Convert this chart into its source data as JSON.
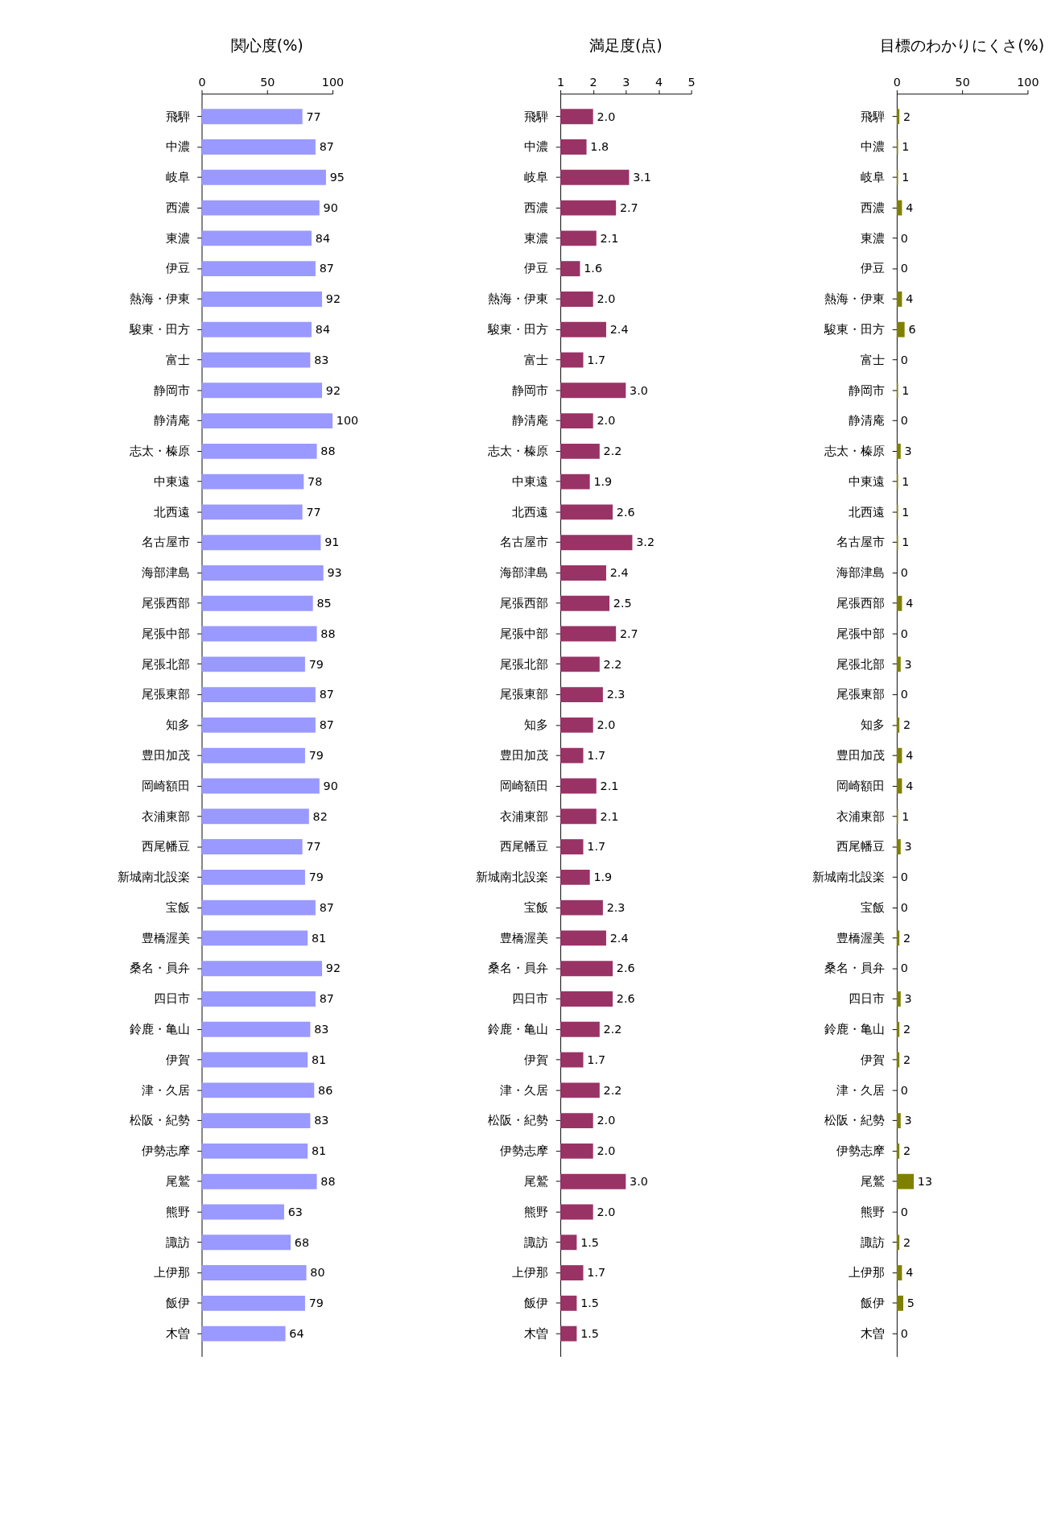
{
  "chart_data": [
    {
      "type": "bar",
      "orientation": "horizontal",
      "title": "関心度(%)",
      "categories": [
        "飛騨",
        "中濃",
        "岐阜",
        "西濃",
        "東濃",
        "伊豆",
        "熱海・伊東",
        "駿東・田方",
        "富士",
        "静岡市",
        "静清庵",
        "志太・榛原",
        "中東遠",
        "北西遠",
        "名古屋市",
        "海部津島",
        "尾張西部",
        "尾張中部",
        "尾張北部",
        "尾張東部",
        "知多",
        "豊田加茂",
        "岡崎額田",
        "衣浦東部",
        "西尾幡豆",
        "新城南北設楽",
        "宝飯",
        "豊橋渥美",
        "桑名・員弁",
        "四日市",
        "鈴鹿・亀山",
        "伊賀",
        "津・久居",
        "松阪・紀勢",
        "伊勢志摩",
        "尾鷲",
        "熊野",
        "諏訪",
        "上伊那",
        "飯伊",
        "木曽"
      ],
      "series": [
        {
          "color": "#9999ff",
          "values": [
            77,
            87,
            95,
            90,
            84,
            87,
            92,
            84,
            83,
            92,
            100,
            88,
            78,
            77,
            91,
            93,
            85,
            88,
            79,
            87,
            87,
            79,
            90,
            82,
            77,
            79,
            87,
            81,
            92,
            87,
            83,
            81,
            86,
            83,
            81,
            88,
            63,
            68,
            80,
            79,
            64
          ]
        }
      ],
      "xlim": [
        0,
        100
      ],
      "xticks": [
        0,
        50,
        100
      ],
      "data_labels": true,
      "grid": false,
      "legend": false
    },
    {
      "type": "bar",
      "orientation": "horizontal",
      "title": "満足度(点)",
      "categories": [
        "飛騨",
        "中濃",
        "岐阜",
        "西濃",
        "東濃",
        "伊豆",
        "熱海・伊東",
        "駿東・田方",
        "富士",
        "静岡市",
        "静清庵",
        "志太・榛原",
        "中東遠",
        "北西遠",
        "名古屋市",
        "海部津島",
        "尾張西部",
        "尾張中部",
        "尾張北部",
        "尾張東部",
        "知多",
        "豊田加茂",
        "岡崎額田",
        "衣浦東部",
        "西尾幡豆",
        "新城南北設楽",
        "宝飯",
        "豊橋渥美",
        "桑名・員弁",
        "四日市",
        "鈴鹿・亀山",
        "伊賀",
        "津・久居",
        "松阪・紀勢",
        "伊勢志摩",
        "尾鷲",
        "熊野",
        "諏訪",
        "上伊那",
        "飯伊",
        "木曽"
      ],
      "series": [
        {
          "color": "#993366",
          "values": [
            2.0,
            1.8,
            3.1,
            2.7,
            2.1,
            1.6,
            2.0,
            2.4,
            1.7,
            3.0,
            2.0,
            2.2,
            1.9,
            2.6,
            3.2,
            2.4,
            2.5,
            2.7,
            2.2,
            2.3,
            2.0,
            1.7,
            2.1,
            2.1,
            1.7,
            1.9,
            2.3,
            2.4,
            2.6,
            2.6,
            2.2,
            1.7,
            2.2,
            2.0,
            2.0,
            3.0,
            2.0,
            1.5,
            1.7,
            1.5,
            1.5
          ],
          "value_labels": [
            "2.0",
            "1.8",
            "3.1",
            "2.7",
            "2.1",
            "1.6",
            "2.0",
            "2.4",
            "1.7",
            "3.0",
            "2.0",
            "2.2",
            "1.9",
            "2.6",
            "3.2",
            "2.4",
            "2.5",
            "2.7",
            "2.2",
            "2.3",
            "2.0",
            "1.7",
            "2.1",
            "2.1",
            "1.7",
            "1.9",
            "2.3",
            "2.4",
            "2.6",
            "2.6",
            "2.2",
            "1.7",
            "2.2",
            "2.0",
            "2.0",
            "3.0",
            "2.0",
            "1.5",
            "1.7",
            "1.5",
            "1.5"
          ]
        }
      ],
      "xlim": [
        1,
        5
      ],
      "xticks": [
        1,
        2,
        3,
        4,
        5
      ],
      "grid": false,
      "legend": false
    },
    {
      "type": "bar",
      "orientation": "horizontal",
      "title": "目標のわかりにくさ(%)",
      "categories": [
        "飛騨",
        "中濃",
        "岐阜",
        "西濃",
        "東濃",
        "伊豆",
        "熱海・伊東",
        "駿東・田方",
        "富士",
        "静岡市",
        "静清庵",
        "志太・榛原",
        "中東遠",
        "北西遠",
        "名古屋市",
        "海部津島",
        "尾張西部",
        "尾張中部",
        "尾張北部",
        "尾張東部",
        "知多",
        "豊田加茂",
        "岡崎額田",
        "衣浦東部",
        "西尾幡豆",
        "新城南北設楽",
        "宝飯",
        "豊橋渥美",
        "桑名・員弁",
        "四日市",
        "鈴鹿・亀山",
        "伊賀",
        "津・久居",
        "松阪・紀勢",
        "伊勢志摩",
        "尾鷲",
        "熊野",
        "諏訪",
        "上伊那",
        "飯伊",
        "木曽"
      ],
      "series": [
        {
          "color": "#808000",
          "values": [
            2,
            1,
            1,
            4,
            0,
            0,
            4,
            6,
            0,
            1,
            0,
            3,
            1,
            1,
            1,
            0,
            4,
            0,
            3,
            0,
            2,
            4,
            4,
            1,
            3,
            0,
            0,
            2,
            0,
            3,
            2,
            2,
            0,
            3,
            2,
            13,
            0,
            2,
            4,
            5,
            0
          ]
        }
      ],
      "xlim": [
        0,
        100
      ],
      "xticks": [
        0,
        50,
        100
      ],
      "data_labels": true,
      "grid": false,
      "legend": false
    }
  ]
}
